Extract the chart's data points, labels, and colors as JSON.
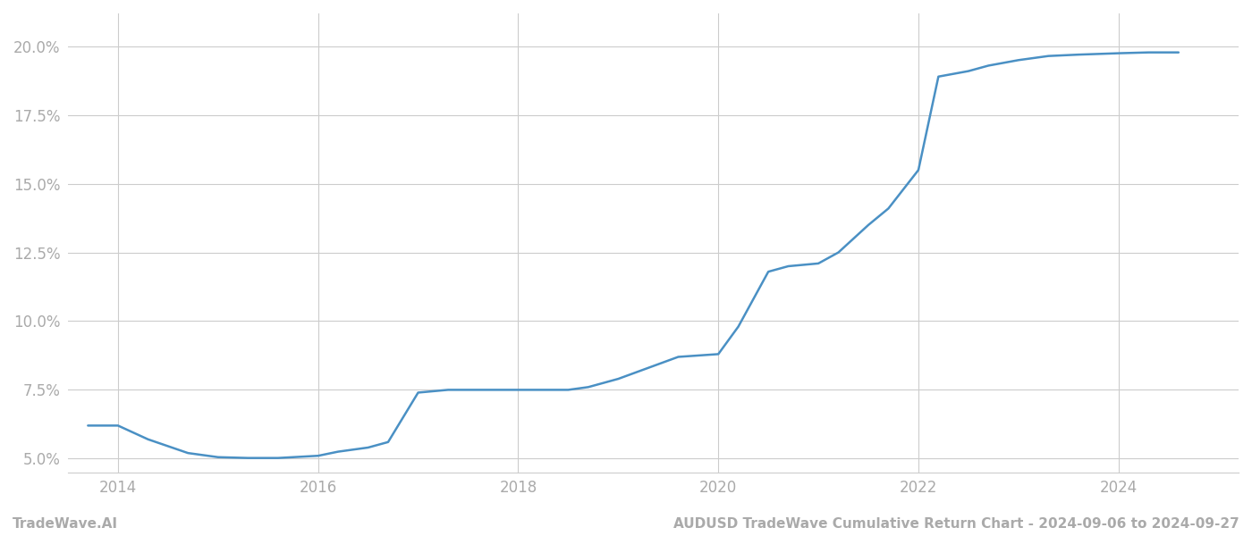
{
  "title": "AUDUSD TradeWave Cumulative Return Chart - 2024-09-06 to 2024-09-27",
  "watermark": "TradeWave.AI",
  "line_color": "#4a90c4",
  "background_color": "#ffffff",
  "grid_color": "#cccccc",
  "x_years": [
    2013.7,
    2014.0,
    2014.3,
    2014.7,
    2015.0,
    2015.3,
    2015.6,
    2016.0,
    2016.2,
    2016.5,
    2016.7,
    2017.0,
    2017.3,
    2017.6,
    2018.0,
    2018.2,
    2018.5,
    2018.7,
    2019.0,
    2019.3,
    2019.6,
    2020.0,
    2020.2,
    2020.5,
    2020.7,
    2021.0,
    2021.2,
    2021.5,
    2021.7,
    2022.0,
    2022.2,
    2022.5,
    2022.7,
    2023.0,
    2023.3,
    2023.6,
    2024.0,
    2024.3,
    2024.6
  ],
  "y_values": [
    6.2,
    6.2,
    5.7,
    5.2,
    5.05,
    5.02,
    5.02,
    5.1,
    5.25,
    5.4,
    5.6,
    7.4,
    7.5,
    7.5,
    7.5,
    7.5,
    7.5,
    7.6,
    7.9,
    8.3,
    8.7,
    8.8,
    9.8,
    11.8,
    12.0,
    12.1,
    12.5,
    13.5,
    14.1,
    15.5,
    18.9,
    19.1,
    19.3,
    19.5,
    19.65,
    19.7,
    19.75,
    19.78,
    19.78
  ],
  "xlim": [
    2013.5,
    2025.2
  ],
  "ylim": [
    4.5,
    21.2
  ],
  "yticks": [
    5.0,
    7.5,
    10.0,
    12.5,
    15.0,
    17.5,
    20.0
  ],
  "xticks": [
    2014,
    2016,
    2018,
    2020,
    2022,
    2024
  ],
  "tick_label_color": "#aaaaaa",
  "tick_fontsize": 12,
  "title_fontsize": 11,
  "watermark_fontsize": 11,
  "line_width": 1.8
}
